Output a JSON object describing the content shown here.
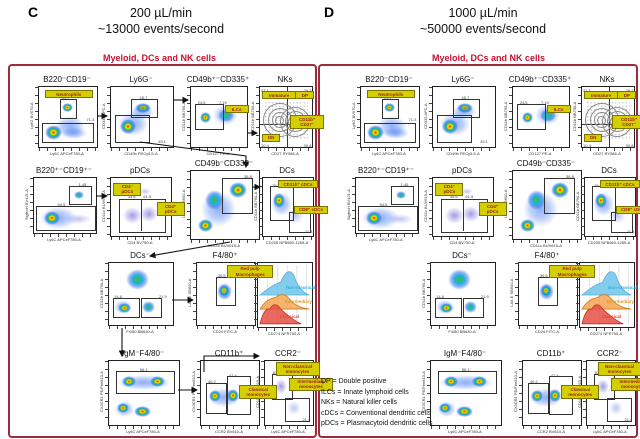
{
  "panels": [
    {
      "letter": "C",
      "flow_rate": "200 µL/min",
      "event_rate": "~13000 events/second",
      "group_label": "Myeloid, DCs and NK cells"
    },
    {
      "letter": "D",
      "flow_rate": "1000 µL/min",
      "event_rate": "~50000 events/second",
      "group_label": "Myeloid, DCs and NK cells"
    }
  ],
  "plot_template": [
    {
      "title": "B220⁻CD19⁻",
      "ylabel": "Ly6G BV570-A",
      "xlabel": "Ly6C APCeF780-A",
      "kind": "pseudo",
      "gate_labels": [
        "Neutrophils"
      ],
      "gate_numbers": [
        "21.7",
        "71.3"
      ]
    },
    {
      "title": "Ly6G⁻",
      "ylabel": "CD335 APC-A",
      "xlabel": "CD49b PECy5.5-A",
      "kind": "pseudo",
      "gate_labels": [],
      "gate_numbers": [
        "45.7",
        "49.1"
      ]
    },
    {
      "title": "CD49b⁺⁻CD335⁺",
      "ylabel": "CD11b BB790-A",
      "xlabel": "CD127 PE-A",
      "kind": "pseudo",
      "gate_labels": [
        "ILCs"
      ],
      "gate_numbers": [
        "24.5",
        "7.19"
      ]
    },
    {
      "title": "NKs",
      "ylabel": "CD11b BB790-A",
      "xlabel": "CD27 RY586-A",
      "kind": "contour",
      "gate_labels": [
        "Immature",
        "DP",
        "CD11b⁺ CD27⁻",
        "DN"
      ],
      "gate_numbers": [
        "27.1",
        "29.2",
        "30.8",
        "10.4"
      ]
    },
    {
      "title": "B220⁺⁻CD19⁺⁻",
      "ylabel": "SiglecH BV421-A",
      "xlabel": "Ly6C APCeF780-A",
      "kind": "pseudo",
      "gate_labels": [],
      "gate_numbers": [
        "1.45",
        "94.5"
      ]
    },
    {
      "title": "pDCs",
      "ylabel": "CD11c BUV615-A",
      "xlabel": "CD4 BV750-A",
      "kind": "dots",
      "gate_labels": [
        "CD4⁻ pDCs",
        "CD4⁺ pDCs"
      ],
      "gate_numbers": [
        "34.6",
        "61.5"
      ]
    },
    {
      "title": "CD49b⁻CD335⁻",
      "ylabel": "I-A/I-E SB600-A",
      "xlabel": "CD11c BUV615-A",
      "kind": "pseudo",
      "gate_labels": [],
      "gate_numbers": [
        "38.8"
      ]
    },
    {
      "title": "DCs",
      "ylabel": "CD11b BB790-A",
      "xlabel": "CD205 NFB660-1265-A",
      "kind": "pseudo",
      "gate_labels": [
        "CD11b⁺ cDCs",
        "CD8⁺ cDCs"
      ],
      "gate_numbers": [
        "15.3",
        "11.4"
      ]
    },
    {
      "title": "DCs⁻",
      "ylabel": "CD11b BB790-A",
      "xlabel": "F4/80 BB630-A",
      "kind": "pseudo",
      "gate_labels": [],
      "gate_numbers": [
        "14.8",
        "21.9"
      ]
    },
    {
      "title": "F4/80⁺",
      "ylabel": "I-A/I-E SB600-A",
      "xlabel": "CD24 FITC-A",
      "kind": "pseudo",
      "gate_labels": [
        "Red pulp Macrophages"
      ],
      "gate_numbers": [
        "39.5"
      ]
    },
    {
      "title": "",
      "ylabel": "",
      "xlabel": "CD274 NFR750-A",
      "kind": "hist",
      "gate_labels": [
        "Non-classical",
        "Intermediary",
        "Classical"
      ],
      "gate_numbers": []
    },
    {
      "title": "IgM⁻F4/80⁻",
      "ylabel": "CX3CR1 PE/Fire810-A",
      "xlabel": "Ly6C APCeF780-A",
      "kind": "pseudo",
      "gate_labels": [],
      "gate_numbers": [
        "56.1"
      ]
    },
    {
      "title": "CD11b⁺",
      "ylabel": "CX3CR1 PE/Fire810-A",
      "xlabel": "CCR2 BV610-A",
      "kind": "pseudo",
      "gate_labels": [
        "Classical monocytes"
      ],
      "gate_numbers": [
        "40.2",
        "47.4"
      ]
    },
    {
      "title": "CCR2⁻",
      "ylabel": "CD11b BUV615-A",
      "xlabel": "Ly6C APCeF780-A",
      "kind": "dots",
      "gate_labels": [
        "Non-classical monocytes",
        "Intermediary monocytes"
      ],
      "gate_numbers": [
        "87.1",
        "21.4"
      ]
    }
  ],
  "legend": [
    "DP = Double positive",
    "ILCs = Innate lymphoid cells",
    "NKs = Natural killer cells",
    "cDCs = Conventional dendritic cells",
    "pDCs = Plasmacytoid dendritic cells"
  ],
  "colors": {
    "panel_border": "#9c2b3b",
    "group_label": "#c8102e",
    "gate_label_bg": "#d6cf00",
    "gate_label_border": "#7a7400",
    "gate_label_text": "#9c1f1f",
    "hist": {
      "non_classical": "#35aed6",
      "intermediary": "#e8951e",
      "classical": "#e04838"
    }
  }
}
